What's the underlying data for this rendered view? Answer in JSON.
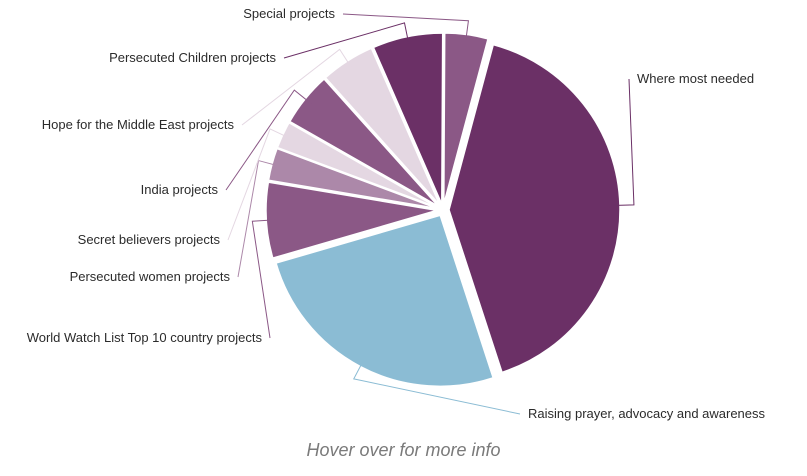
{
  "chart_data": {
    "type": "pie",
    "title": "",
    "note": "Hover over for more info",
    "slices": [
      {
        "label": "Where most needed",
        "value": 40,
        "color": "#6b3066"
      },
      {
        "label": "Raising prayer, advocacy and awareness",
        "value": 25,
        "color": "#8bbcd4"
      },
      {
        "label": "World Watch List Top 10 country projects",
        "value": 7,
        "color": "#8b5886"
      },
      {
        "label": "Persecuted women projects",
        "value": 3,
        "color": "#ac88a9"
      },
      {
        "label": "Secret believers projects",
        "value": 2.5,
        "color": "#e4d7e2"
      },
      {
        "label": "India projects",
        "value": 5,
        "color": "#8b5886"
      },
      {
        "label": "Hope for the Middle East projects",
        "value": 5,
        "color": "#e4d7e2"
      },
      {
        "label": "Persecuted Children projects",
        "value": 6.5,
        "color": "#6b3066"
      },
      {
        "label": "Special projects",
        "value": 4,
        "color": "#8b5886"
      }
    ]
  }
}
